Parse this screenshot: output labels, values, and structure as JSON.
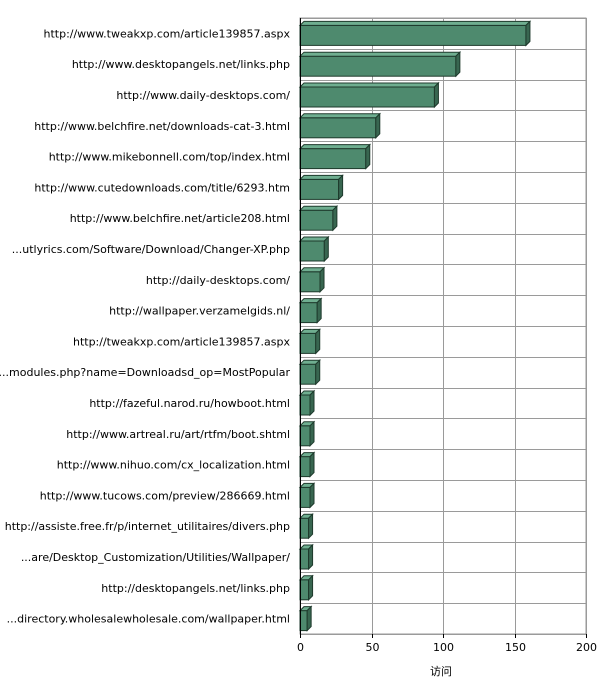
{
  "chart_data": {
    "type": "bar",
    "orientation": "horizontal",
    "style": "3d",
    "categories": [
      "http://www.tweakxp.com/article139857.aspx",
      "http://www.desktopangels.net/links.php",
      "http://www.daily-desktops.com/",
      "http://www.belchfire.net/downloads-cat-3.html",
      "http://www.mikebonnell.com/top/index.html",
      "http://www.cutedownloads.com/title/6293.htm",
      "http://www.belchfire.net/article208.html",
      "...utlyrics.com/Software/Download/Changer-XP.php",
      "http://daily-desktops.com/",
      "http://wallpaper.verzamelgids.nl/",
      "http://tweakxp.com/article139857.aspx",
      "...modules.php?name=Downloadsd_op=MostPopular",
      "http://fazeful.narod.ru/howboot.html",
      "http://www.artreal.ru/art/rtfm/boot.shtml",
      "http://www.nihuo.com/cx_localization.html",
      "http://www.tucows.com/preview/286669.html",
      "http://assiste.free.fr/p/internet_utilitaires/divers.php",
      "...are/Desktop_Customization/Utilities/Wallpaper/",
      "http://desktopangels.net/links.php",
      "...directory.wholesalewholesale.com/wallpaper.html"
    ],
    "values": [
      158,
      109,
      94,
      53,
      46,
      27,
      23,
      17,
      14,
      12,
      11,
      11,
      7,
      7,
      7,
      7,
      6,
      6,
      6,
      5
    ],
    "xlabel": "访问",
    "ylabel": "",
    "title": "",
    "xlim": [
      0,
      200
    ],
    "xticks": [
      0,
      50,
      100,
      150,
      200
    ],
    "grid": true,
    "legend": "none",
    "bar_color": "#4e8a6e",
    "bar_top_color": "#6fae90",
    "bar_side_color": "#386650",
    "grid_color": "#9a9a9a"
  }
}
